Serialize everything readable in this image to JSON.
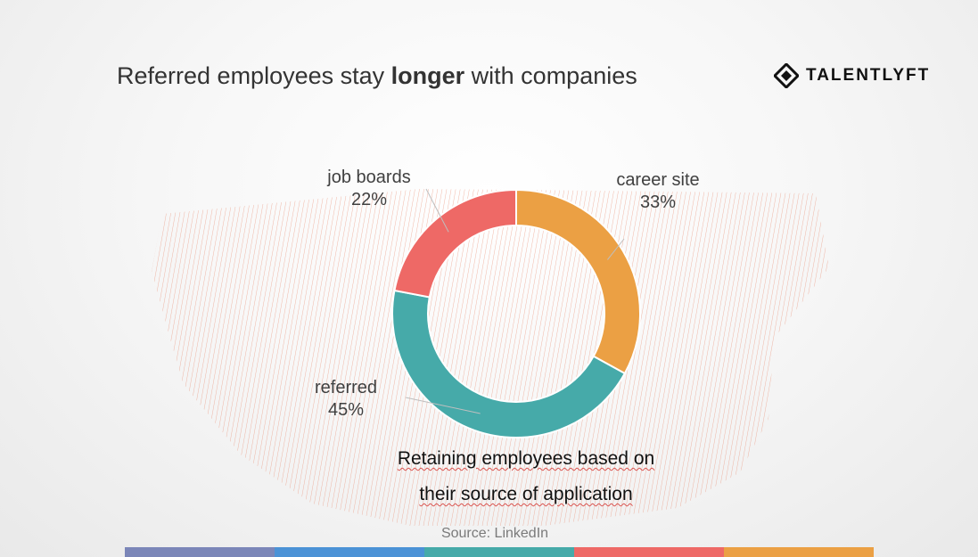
{
  "slide": {
    "title_pre": "Referred employees stay ",
    "title_bold": "longer",
    "title_post": " with companies",
    "logo_text": "TALENTLYFT",
    "caption_line1": "Retaining employees based on",
    "caption_line2": "their source of application",
    "source": "Source: LinkedIn"
  },
  "footer_colors": [
    "#7b86b8",
    "#4b92d6",
    "#46aaa9",
    "#ee6966",
    "#eba044"
  ],
  "chart_data": {
    "type": "pie",
    "donut": true,
    "title": "",
    "series": [
      {
        "name": "career site",
        "value": 33,
        "value_label": "33%",
        "color": "#eba044"
      },
      {
        "name": "referred",
        "value": 45,
        "value_label": "45%",
        "color": "#46aaa9"
      },
      {
        "name": "job boards",
        "value": 22,
        "value_label": "22%",
        "color": "#ee6966"
      }
    ]
  }
}
